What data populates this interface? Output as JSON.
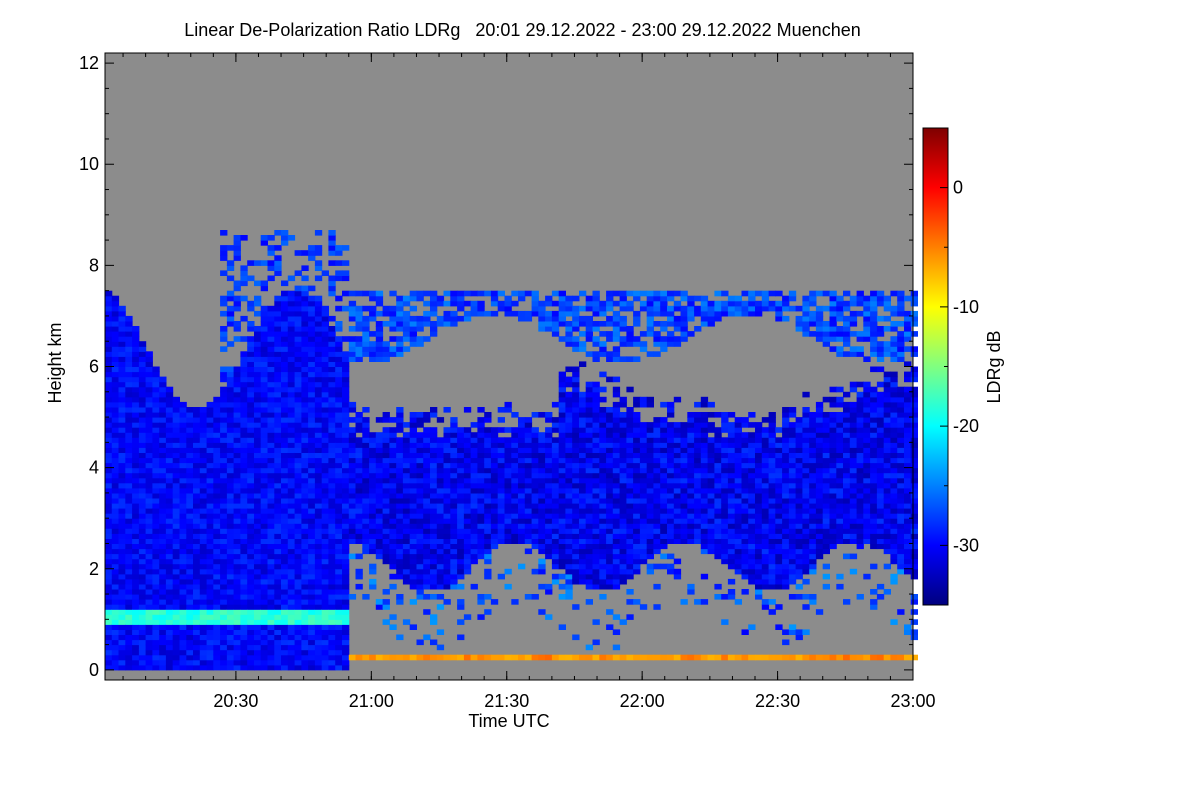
{
  "title": "Linear De-Polarization Ratio LDRg   20:01 29.12.2022 - 23:00 29.12.2022 Muenchen",
  "colors": {
    "missing": "#8c8c8c",
    "colormap": [
      "#00007f",
      "#0000ff",
      "#0080ff",
      "#00ffff",
      "#80ff80",
      "#ffff00",
      "#ff8000",
      "#ff0000",
      "#7f0000"
    ]
  },
  "chart_data": {
    "type": "heatmap",
    "xlabel": "Time UTC",
    "ylabel": "Height km",
    "x_range": [
      "20:01",
      "23:00"
    ],
    "ylim": [
      -0.2,
      12.2
    ],
    "x_ticks": [
      "20:30",
      "21:00",
      "21:30",
      "22:00",
      "22:30",
      "23:00"
    ],
    "y_ticks": [
      0,
      2,
      4,
      6,
      8,
      10,
      12
    ],
    "colorbar": {
      "label": "LDRg dB",
      "range": [
        -35,
        5
      ],
      "ticks": [
        0,
        -10,
        -20,
        -30
      ]
    },
    "features": {
      "low_layer_height_km": 1.0,
      "low_layer_end": "20:55",
      "surface_layer_height_km": 0.25,
      "main_cloud_base_km": 2.0,
      "main_cloud_top_km": 6.5,
      "upper_layer_km": [
        6.5,
        7.4
      ]
    }
  }
}
